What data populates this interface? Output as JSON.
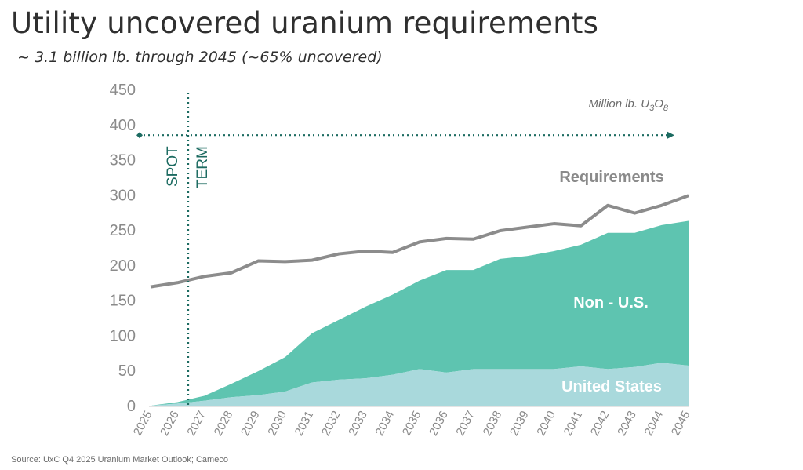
{
  "header": {
    "title": "Utility uncovered uranium requirements",
    "subtitle": "~ 3.1 billion lb. through 2045 (~65% uncovered)"
  },
  "footer": {
    "source": "Source: UxC Q4 2025 Uranium Market Outlook; Cameco"
  },
  "colors": {
    "requirements_line": "#8c8c8c",
    "non_us_fill": "#5ec4b0",
    "us_fill": "#a9d9dc",
    "spot_term_marker": "#1c6b61",
    "axis_text": "#8a8a8a"
  },
  "chart_data": {
    "type": "area",
    "title": "Utility uncovered uranium requirements",
    "subtitle": "~ 3.1 billion lb. through 2045 (~65% uncovered)",
    "unit_label_prefix": "Million lb. U",
    "unit_label_sub1": "3",
    "unit_label_mid": "O",
    "unit_label_sub2": "8",
    "x": [
      "2025",
      "2026",
      "2027",
      "2028",
      "2029",
      "2030",
      "2031",
      "2032",
      "2033",
      "2034",
      "2035",
      "2036",
      "2037",
      "2038",
      "2039",
      "2040",
      "2041",
      "2042",
      "2043",
      "2044",
      "2045"
    ],
    "ylim": [
      0,
      450
    ],
    "yticks": [
      0,
      50,
      100,
      150,
      200,
      250,
      300,
      350,
      400,
      450
    ],
    "grid": false,
    "series": [
      {
        "name": "United States",
        "kind": "stacked-area",
        "values": [
          0,
          3,
          7,
          12,
          15,
          20,
          33,
          37,
          39,
          44,
          52,
          47,
          52,
          52,
          52,
          52,
          56,
          52,
          55,
          61,
          57
        ]
      },
      {
        "name": "Non - U.S.",
        "kind": "stacked-area",
        "values": [
          0,
          2,
          7,
          19,
          34,
          49,
          70,
          85,
          102,
          114,
          126,
          146,
          141,
          157,
          161,
          168,
          173,
          194,
          191,
          196,
          206
        ]
      },
      {
        "name": "Requirements",
        "kind": "line",
        "values": [
          169,
          175,
          184,
          189,
          206,
          205,
          207,
          216,
          220,
          218,
          233,
          238,
          237,
          249,
          254,
          259,
          256,
          285,
          274,
          285,
          299
        ]
      }
    ],
    "annotations": {
      "spot_label": "SPOT",
      "term_label": "TERM",
      "spot_term_divider_x": 2026.4,
      "term_arrow_level": 385
    }
  }
}
